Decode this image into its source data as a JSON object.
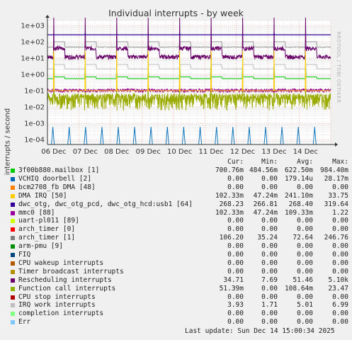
{
  "title": "Individual interrupts - by week",
  "watermark": "RRDTOOL / TOBI OETIKER",
  "chart_data": {
    "type": "line",
    "ylabel": "interrupts / second",
    "yscale": "log",
    "ylim": [
      5e-05,
      2000
    ],
    "yticks": [
      "1e+03",
      "1e+02",
      "1e+01",
      "1e+00",
      "1e-01",
      "1e-02",
      "1e-03",
      "1e-04"
    ],
    "x_ticks": [
      "06 Dec",
      "07 Dec",
      "08 Dec",
      "09 Dec",
      "10 Dec",
      "11 Dec",
      "12 Dec",
      "13 Dec",
      "14 Dec"
    ],
    "x_range_days": [
      0,
      9.0
    ],
    "series": [
      {
        "name": "3f00b880.mailbox [1]",
        "color": "#00cc00",
        "level": 0.7
      },
      {
        "name": "DMA IRQ [50]",
        "color": "#ffcc00",
        "level": 0.1
      },
      {
        "name": "dwc_otg, dwc_otg_pcd, dwc_otg_hcd:usb1 [64]",
        "color": "#330099",
        "level": 268
      },
      {
        "name": "mmc0 [88]",
        "color": "#990099",
        "level": 0.1
      },
      {
        "name": "arch_timer [1]",
        "color": "#999999",
        "level": 106
      },
      {
        "name": "Rescheduling interrupts",
        "color": "#660066",
        "level": 35
      },
      {
        "name": "Function call interrupts",
        "color": "#99aa00",
        "level": 0.05
      },
      {
        "name": "IRQ work interrupts",
        "color": "#bbbbbb",
        "level": 3.9
      },
      {
        "name": "FIQ",
        "color": "#1177bb",
        "level": 0.0001
      }
    ]
  },
  "legend": {
    "headers": [
      "Cur:",
      "Min:",
      "Avg:",
      "Max:"
    ],
    "rows": [
      {
        "label": "3f00b880.mailbox [1]",
        "color": "#00cc00",
        "cur": "700.76m",
        "min": "484.56m",
        "avg": "622.50m",
        "max": "984.40m"
      },
      {
        "label": "VCHIQ doorbell [2]",
        "color": "#0066b3",
        "cur": "0.00",
        "min": "0.00",
        "avg": "179.14u",
        "max": "28.17m"
      },
      {
        "label": "bcm2708_fb DMA [48]",
        "color": "#ff8000",
        "cur": "0.00",
        "min": "0.00",
        "avg": "0.00",
        "max": "0.00"
      },
      {
        "label": "DMA IRQ [50]",
        "color": "#ffcc00",
        "cur": "102.33m",
        "min": "47.24m",
        "avg": "241.10m",
        "max": "33.75"
      },
      {
        "label": "dwc_otg, dwc_otg_pcd, dwc_otg_hcd:usb1 [64]",
        "color": "#330099",
        "cur": "268.23",
        "min": "266.81",
        "avg": "268.40",
        "max": "319.64"
      },
      {
        "label": "mmc0 [88]",
        "color": "#990099",
        "cur": "102.33m",
        "min": "47.24m",
        "avg": "109.33m",
        "max": "1.22"
      },
      {
        "label": "uart-pl011 [89]",
        "color": "#ccff00",
        "cur": "0.00",
        "min": "0.00",
        "avg": "0.00",
        "max": "0.00"
      },
      {
        "label": "arch_timer [0]",
        "color": "#ff0000",
        "cur": "0.00",
        "min": "0.00",
        "avg": "0.00",
        "max": "0.00"
      },
      {
        "label": "arch_timer [1]",
        "color": "#808080",
        "cur": "106.20",
        "min": "35.24",
        "avg": "72.64",
        "max": "246.76"
      },
      {
        "label": "arm-pmu [9]",
        "color": "#008f00",
        "cur": "0.00",
        "min": "0.00",
        "avg": "0.00",
        "max": "0.00"
      },
      {
        "label": "FIQ",
        "color": "#00487d",
        "cur": "0.00",
        "min": "0.00",
        "avg": "0.00",
        "max": "0.00"
      },
      {
        "label": "CPU wakeup interrupts",
        "color": "#b35a00",
        "cur": "0.00",
        "min": "0.00",
        "avg": "0.00",
        "max": "0.00"
      },
      {
        "label": "Timer broadcast interrupts",
        "color": "#b38f00",
        "cur": "0.00",
        "min": "0.00",
        "avg": "0.00",
        "max": "0.00"
      },
      {
        "label": "Rescheduling interrupts",
        "color": "#6b006b",
        "cur": "34.71",
        "min": "7.69",
        "avg": "51.46",
        "max": "5.10k"
      },
      {
        "label": "Function call interrupts",
        "color": "#8fb300",
        "cur": "51.39m",
        "min": "0.00",
        "avg": "108.64m",
        "max": "23.47"
      },
      {
        "label": "CPU stop interrupts",
        "color": "#b30000",
        "cur": "0.00",
        "min": "0.00",
        "avg": "0.00",
        "max": "0.00"
      },
      {
        "label": "IRQ work interrupts",
        "color": "#bebebe",
        "cur": "3.93",
        "min": "1.71",
        "avg": "5.01",
        "max": "6.99"
      },
      {
        "label": "completion interrupts",
        "color": "#80ff80",
        "cur": "0.00",
        "min": "0.00",
        "avg": "0.00",
        "max": "0.00"
      },
      {
        "label": "Err",
        "color": "#80c9ff",
        "cur": "0.00",
        "min": "0.00",
        "avg": "0.00",
        "max": "0.00"
      }
    ]
  },
  "last_update": "Last update: Sun Dec 14 15:00:34 2025"
}
